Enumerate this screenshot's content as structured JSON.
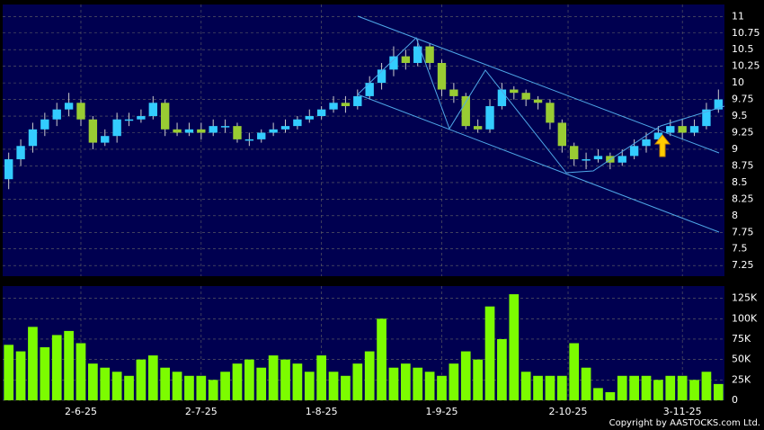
{
  "chart_data": {
    "type": "candlestick",
    "source": "Copyright by AASTOCKS.com Ltd.",
    "up_color": "#33ccff",
    "down_color": "#99cc33",
    "volume_color": "#7cfc00",
    "xlim": [
      -0.5,
      59.5
    ],
    "xticks": [
      {
        "value": 6,
        "label": "2-6-25"
      },
      {
        "value": 16,
        "label": "2-7-25"
      },
      {
        "value": 26,
        "label": "1-8-25"
      },
      {
        "value": 36,
        "label": "1-9-25"
      },
      {
        "value": 46.5,
        "label": "2-10-25"
      },
      {
        "value": 56,
        "label": "3-11-25"
      }
    ],
    "ylim": [
      7.09,
      11.18
    ],
    "yticks": [
      7.25,
      7.5,
      7.75,
      8,
      8.25,
      8.5,
      8.75,
      9,
      9.25,
      9.5,
      9.75,
      10,
      10.25,
      10.5,
      10.75,
      11
    ],
    "y2lim": [
      0,
      140000
    ],
    "y2ticks": [
      0,
      {
        "value": 25000,
        "label": "25K"
      },
      {
        "value": 50000,
        "label": "50K"
      },
      {
        "value": 75000,
        "label": "75K"
      },
      {
        "value": 100000,
        "label": "100K"
      },
      {
        "value": 125000,
        "label": "125K"
      }
    ],
    "grid": true,
    "open": [
      8.55,
      8.85,
      9.05,
      9.3,
      9.45,
      9.6,
      9.7,
      9.45,
      9.1,
      9.2,
      9.45,
      9.45,
      9.5,
      9.7,
      9.3,
      9.25,
      9.3,
      9.25,
      9.35,
      9.35,
      9.15,
      9.15,
      9.25,
      9.3,
      9.35,
      9.45,
      9.5,
      9.6,
      9.7,
      9.65,
      9.8,
      10.0,
      10.2,
      10.4,
      10.3,
      10.55,
      10.3,
      9.9,
      9.8,
      9.35,
      9.3,
      9.65,
      9.9,
      9.85,
      9.75,
      9.7,
      9.4,
      9.05,
      8.85,
      8.85,
      8.9,
      8.8,
      8.9,
      9.05,
      9.15,
      9.25,
      9.35,
      9.25,
      9.35,
      9.6
    ],
    "high": [
      8.95,
      9.15,
      9.4,
      9.55,
      9.7,
      9.85,
      9.75,
      9.5,
      9.3,
      9.55,
      9.55,
      9.6,
      9.8,
      9.75,
      9.4,
      9.4,
      9.4,
      9.45,
      9.45,
      9.4,
      9.25,
      9.3,
      9.4,
      9.45,
      9.5,
      9.6,
      9.65,
      9.8,
      9.8,
      9.9,
      10.1,
      10.3,
      10.55,
      10.5,
      10.65,
      10.6,
      10.35,
      10.0,
      9.85,
      9.45,
      9.75,
      10.0,
      9.95,
      9.9,
      9.8,
      9.75,
      9.45,
      9.1,
      8.95,
      9.0,
      8.95,
      9.0,
      9.15,
      9.25,
      9.35,
      9.45,
      9.45,
      9.45,
      9.7,
      9.9
    ],
    "low": [
      8.4,
      8.75,
      8.95,
      9.2,
      9.35,
      9.5,
      9.35,
      9.0,
      9.05,
      9.1,
      9.35,
      9.4,
      9.45,
      9.2,
      9.2,
      9.2,
      9.15,
      9.2,
      9.25,
      9.1,
      9.05,
      9.1,
      9.2,
      9.25,
      9.3,
      9.4,
      9.45,
      9.55,
      9.55,
      9.6,
      9.75,
      9.9,
      10.1,
      10.2,
      10.25,
      10.2,
      9.8,
      9.7,
      9.3,
      9.25,
      9.25,
      9.6,
      9.75,
      9.65,
      9.6,
      9.3,
      8.95,
      8.75,
      8.7,
      8.8,
      8.7,
      8.75,
      8.85,
      8.95,
      9.1,
      9.2,
      9.15,
      9.2,
      9.3,
      9.55
    ],
    "close": [
      8.85,
      9.05,
      9.3,
      9.45,
      9.6,
      9.7,
      9.45,
      9.1,
      9.2,
      9.45,
      9.45,
      9.5,
      9.7,
      9.3,
      9.25,
      9.3,
      9.25,
      9.35,
      9.35,
      9.15,
      9.15,
      9.25,
      9.3,
      9.35,
      9.45,
      9.5,
      9.6,
      9.7,
      9.65,
      9.8,
      10.0,
      10.2,
      10.4,
      10.3,
      10.55,
      10.3,
      9.9,
      9.8,
      9.35,
      9.3,
      9.65,
      9.9,
      9.85,
      9.75,
      9.7,
      9.4,
      9.05,
      8.85,
      8.85,
      8.9,
      8.8,
      8.9,
      9.05,
      9.15,
      9.25,
      9.35,
      9.25,
      9.35,
      9.6,
      9.75
    ],
    "volume": [
      68000,
      60000,
      90000,
      65000,
      80000,
      85000,
      70000,
      45000,
      40000,
      35000,
      30000,
      50000,
      55000,
      40000,
      35000,
      30000,
      30000,
      25000,
      35000,
      45000,
      50000,
      40000,
      55000,
      50000,
      45000,
      35000,
      55000,
      35000,
      30000,
      45000,
      60000,
      100000,
      40000,
      45000,
      40000,
      35000,
      30000,
      45000,
      60000,
      50000,
      115000,
      75000,
      130000,
      35000,
      30000,
      30000,
      30000,
      70000,
      40000,
      15000,
      10000,
      30000,
      30000,
      30000,
      25000,
      30000,
      30000,
      25000,
      35000,
      20000
    ]
  }
}
